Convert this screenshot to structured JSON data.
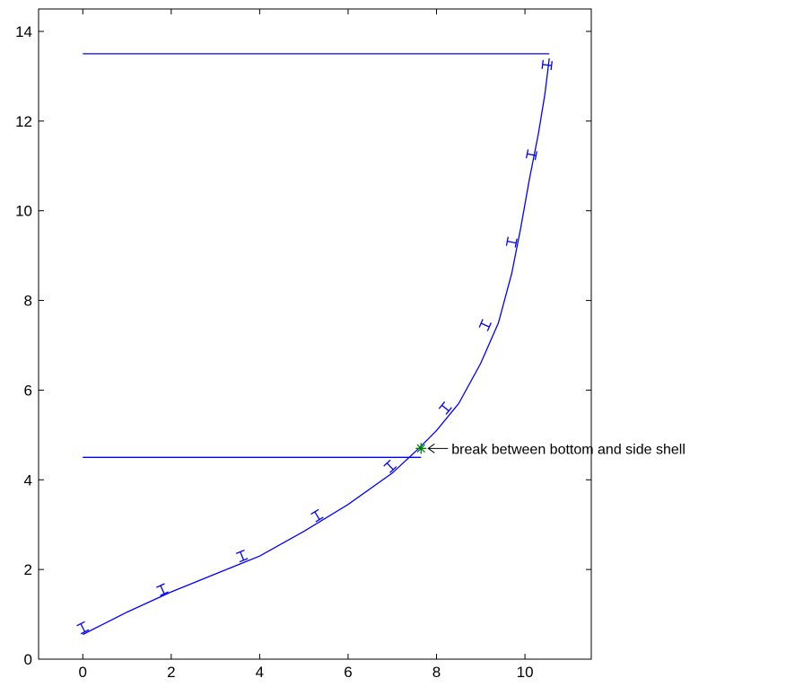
{
  "chart_data": {
    "type": "line",
    "title": "",
    "xlabel": "",
    "ylabel": "",
    "xlim": [
      -1,
      11.5
    ],
    "ylim": [
      0,
      14.5
    ],
    "xticks": [
      0,
      2,
      4,
      6,
      8,
      10
    ],
    "yticks": [
      0,
      2,
      4,
      6,
      8,
      10,
      12,
      14
    ],
    "grid": false,
    "colors": {
      "line": "#0000ff",
      "marker": "#008000",
      "axes": "#000000"
    },
    "series": [
      {
        "kind": "hull",
        "x": [
          0,
          0.5,
          1,
          2,
          3,
          4,
          5,
          6,
          7,
          7.6,
          8,
          8.5,
          9,
          9.4,
          9.7,
          9.9,
          10.1,
          10.3,
          10.45,
          10.55
        ],
        "y": [
          0.55,
          0.8,
          1.05,
          1.5,
          1.9,
          2.3,
          2.85,
          3.45,
          4.15,
          4.7,
          5.1,
          5.7,
          6.6,
          7.5,
          8.6,
          9.6,
          10.7,
          11.7,
          12.6,
          13.4
        ]
      },
      {
        "kind": "deck",
        "x": [
          0,
          10.55
        ],
        "y": [
          13.5,
          13.5
        ]
      },
      {
        "kind": "bottom-break-line",
        "x": [
          0,
          7.65
        ],
        "y": [
          4.5,
          4.5
        ]
      }
    ],
    "stiffener_positions": [
      [
        0,
        0.7
      ],
      [
        1.8,
        1.55
      ],
      [
        3.6,
        2.3
      ],
      [
        5.3,
        3.2
      ],
      [
        6.95,
        4.3
      ],
      [
        8.2,
        5.6
      ],
      [
        9.1,
        7.45
      ],
      [
        9.7,
        9.3
      ],
      [
        10.15,
        11.25
      ],
      [
        10.5,
        13.25
      ]
    ],
    "break_point": {
      "x": 7.65,
      "y": 4.7
    },
    "annotations": [
      {
        "text": "break between bottom and side shell",
        "x": 7.65,
        "y": 4.7
      }
    ]
  }
}
